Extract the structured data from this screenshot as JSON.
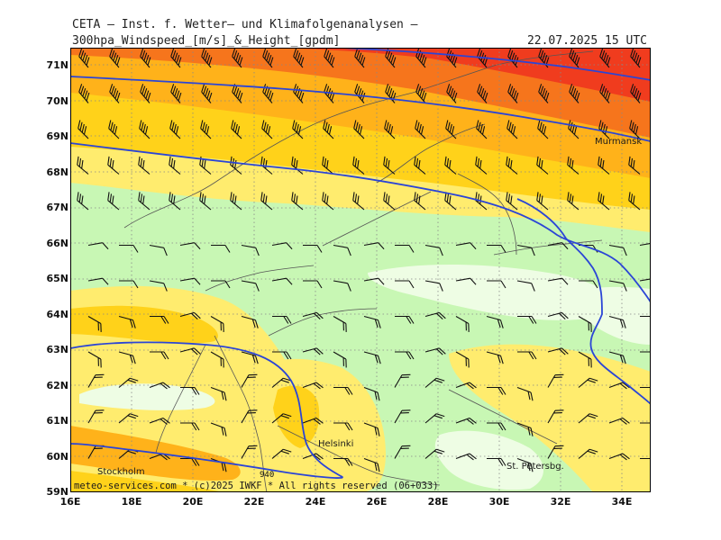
{
  "header": {
    "title": "CETA – Inst. f. Wetter– und Klimafolgenanalysen –",
    "product": "300hpa_Windspeed_[m/s]_&_Height_[gpdm]",
    "valid_time": "22.07.2025 15 UTC"
  },
  "map": {
    "lat_labels": [
      "71N",
      "70N",
      "69N",
      "68N",
      "67N",
      "66N",
      "65N",
      "64N",
      "63N",
      "62N",
      "61N",
      "60N",
      "59N"
    ],
    "lon_labels": [
      "16E",
      "18E",
      "20E",
      "22E",
      "24E",
      "26E",
      "28E",
      "30E",
      "32E",
      "34E"
    ],
    "cities": {
      "murmansk": "Murmansk",
      "helsinki": "Helsinki",
      "stockholm": "Stockholm",
      "st_petersburg": "St. Petersbg."
    },
    "contour_label": "940",
    "copyright": "meteo-services.com * (c)2025 IWKF * All rights reserved (06+033)",
    "colors": {
      "strongest": "#f03c1e",
      "strong": "#f6751c",
      "moderate": "#ffb21a",
      "gold": "#ffd21a",
      "weak": "#ffec6e",
      "light_green": "#c8f7b4",
      "pale_green": "#eefde4",
      "contour": "#2b45d6"
    }
  }
}
